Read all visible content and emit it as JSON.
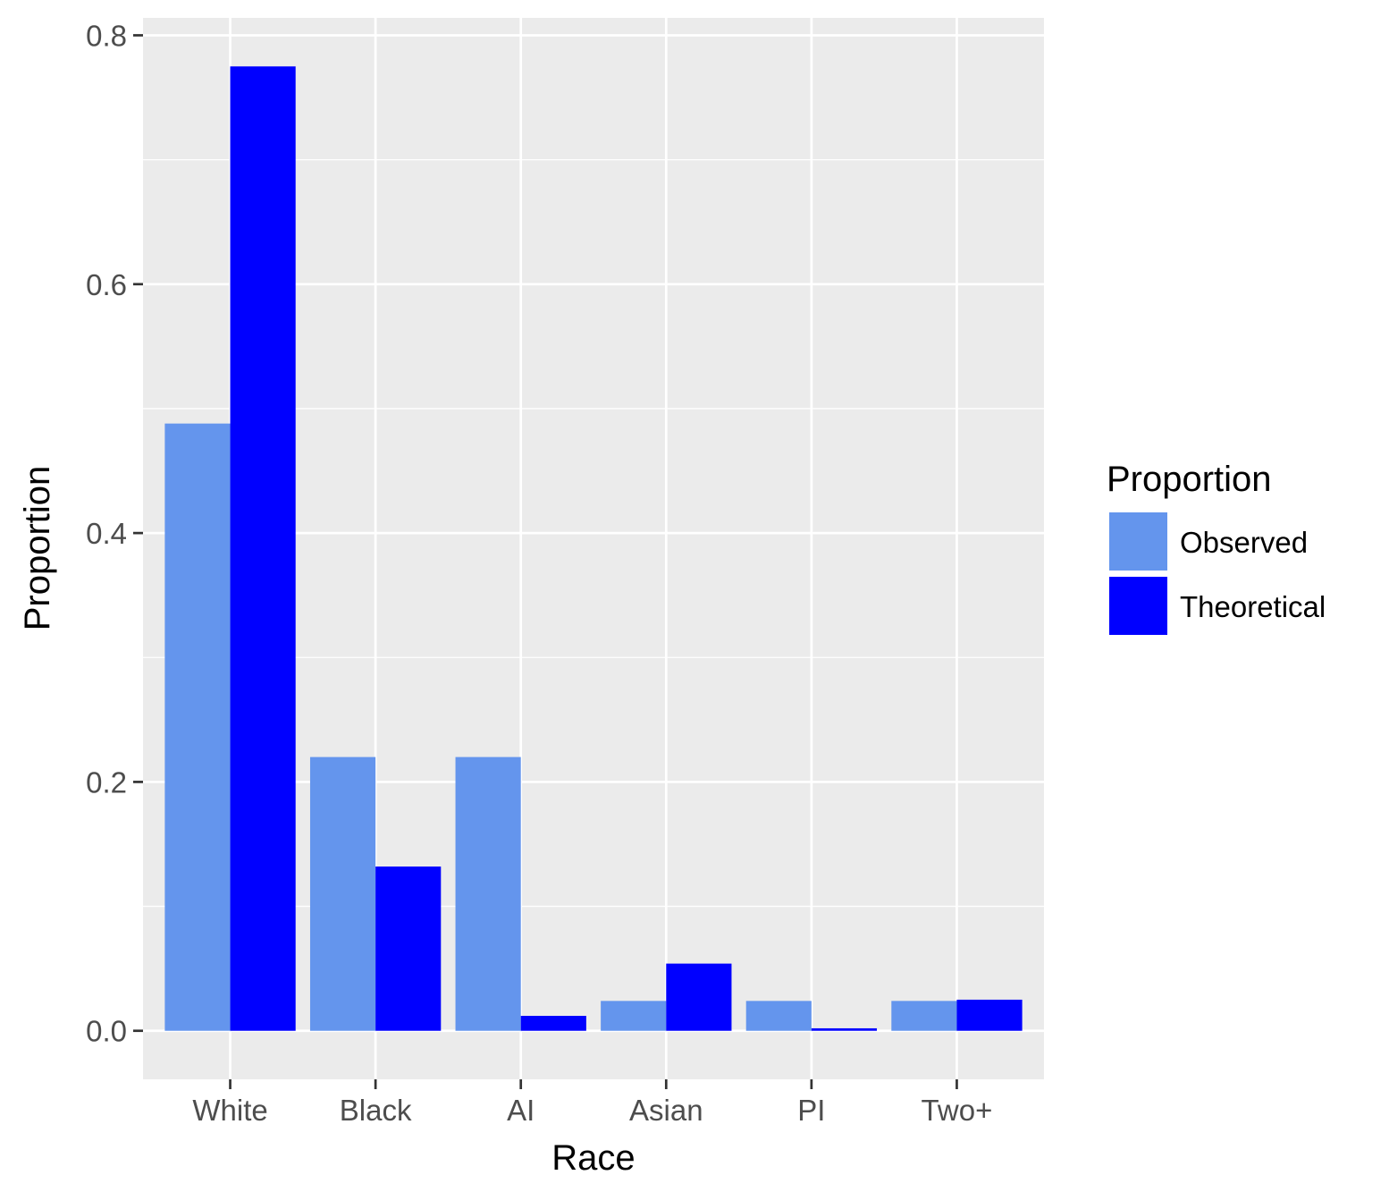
{
  "chart_data": {
    "type": "bar",
    "title": "",
    "xlabel": "Race",
    "ylabel": "Proportion",
    "categories": [
      "White",
      "Black",
      "AI",
      "Asian",
      "PI",
      "Two+"
    ],
    "series": [
      {
        "name": "Observed",
        "color": "#6495ED",
        "values": [
          0.488,
          0.22,
          0.22,
          0.024,
          0.024,
          0.024
        ]
      },
      {
        "name": "Theoretical",
        "color": "#0000FF",
        "values": [
          0.775,
          0.132,
          0.012,
          0.054,
          0.002,
          0.025
        ]
      }
    ],
    "ylim": [
      -0.039,
      0.814
    ],
    "yticks": [
      "0.0",
      "0.2",
      "0.4",
      "0.6",
      "0.8"
    ],
    "ytick_values": [
      0,
      0.2,
      0.4,
      0.6,
      0.8
    ],
    "legend": {
      "title": "Proportion",
      "position": "right"
    },
    "grid": true,
    "panel_background": "#EBEBEB",
    "grid_color": "#FFFFFF"
  }
}
